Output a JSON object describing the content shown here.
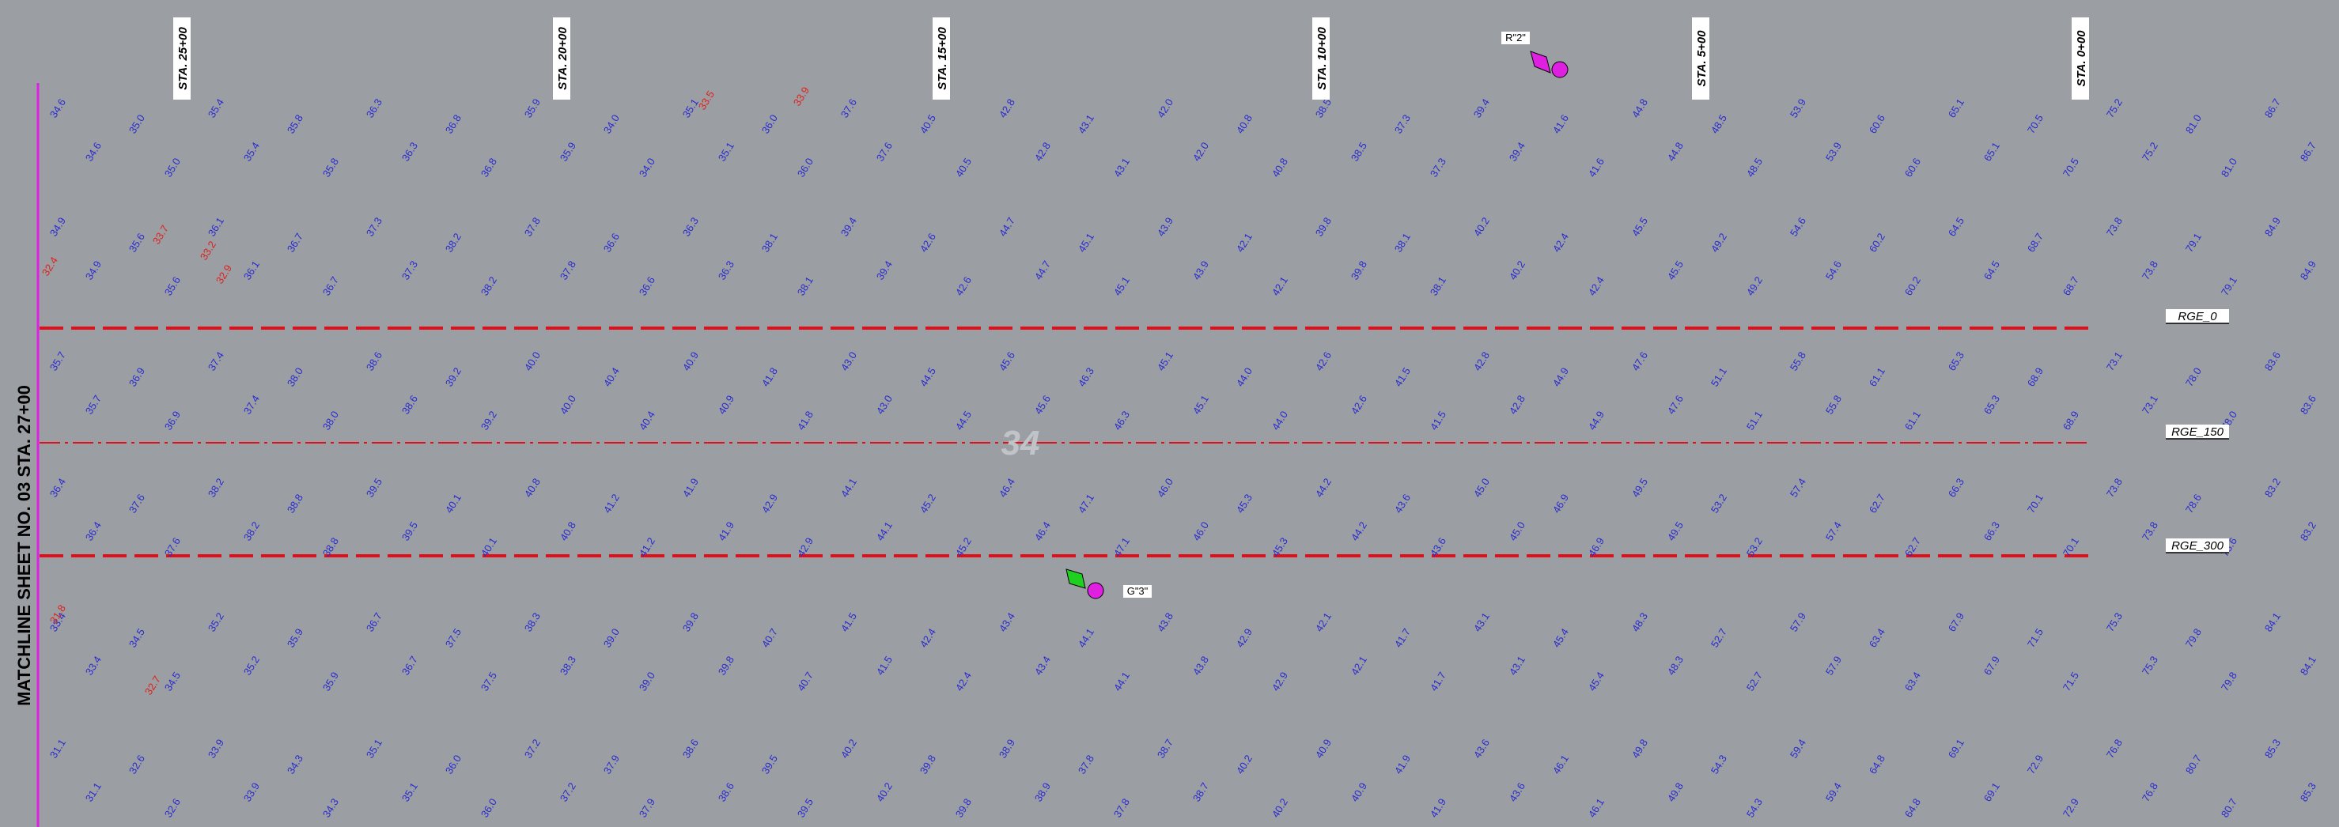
{
  "matchline": "MATCHLINE SHEET NO. 03 STA. 27+00",
  "stations": [
    "STA. 25+00",
    "STA. 20+00",
    "STA. 15+00",
    "STA. 10+00",
    "STA. 5+00",
    "STA. 0+00"
  ],
  "ranges": [
    "RGE_0",
    "RGE_150",
    "RGE_300"
  ],
  "markers": [
    "R\"2\"",
    "G\"3\""
  ],
  "sheet_number": "34",
  "elevation_rows": [
    [
      "34.6",
      "35.0",
      "35.4",
      "35.8",
      "36.3",
      "36.8",
      "35.9",
      "34.0",
      "35.1",
      "36.0",
      "37.6",
      "40.5",
      "42.8",
      "43.1",
      "42.0",
      "40.8",
      "38.5",
      "37.3",
      "39.4",
      "41.6",
      "44.8",
      "48.5",
      "53.9",
      "60.6",
      "65.1",
      "70.5",
      "75.2",
      "81.0",
      "86.7"
    ],
    [
      "34.9",
      "35.6",
      "36.1",
      "36.7",
      "37.3",
      "38.2",
      "37.8",
      "36.6",
      "36.3",
      "38.1",
      "39.4",
      "42.6",
      "44.7",
      "45.1",
      "43.9",
      "42.1",
      "39.8",
      "38.1",
      "40.2",
      "42.4",
      "45.5",
      "49.2",
      "54.6",
      "60.2",
      "64.5",
      "68.7",
      "73.8",
      "79.1",
      "84.9"
    ],
    [
      "35.7",
      "36.9",
      "37.4",
      "38.0",
      "38.6",
      "39.2",
      "40.0",
      "40.4",
      "40.9",
      "41.8",
      "43.0",
      "44.5",
      "45.6",
      "46.3",
      "45.1",
      "44.0",
      "42.6",
      "41.5",
      "42.8",
      "44.9",
      "47.6",
      "51.1",
      "55.8",
      "61.1",
      "65.3",
      "68.9",
      "73.1",
      "78.0",
      "83.6"
    ],
    [
      "36.4",
      "37.6",
      "38.2",
      "38.8",
      "39.5",
      "40.1",
      "40.8",
      "41.2",
      "41.9",
      "42.9",
      "44.1",
      "45.2",
      "46.4",
      "47.1",
      "46.0",
      "45.3",
      "44.2",
      "43.6",
      "45.0",
      "46.9",
      "49.5",
      "53.2",
      "57.4",
      "62.7",
      "66.3",
      "70.1",
      "73.8",
      "78.6",
      "83.2"
    ],
    [
      "33.4",
      "34.5",
      "35.2",
      "35.9",
      "36.7",
      "37.5",
      "38.3",
      "39.0",
      "39.8",
      "40.7",
      "41.5",
      "42.4",
      "43.4",
      "44.1",
      "43.8",
      "42.9",
      "42.1",
      "41.7",
      "43.1",
      "45.4",
      "48.3",
      "52.7",
      "57.9",
      "63.4",
      "67.9",
      "71.5",
      "75.3",
      "79.8",
      "84.1"
    ],
    [
      "31.1",
      "32.6",
      "33.9",
      "34.3",
      "35.1",
      "36.0",
      "37.2",
      "37.9",
      "38.6",
      "39.5",
      "40.2",
      "39.8",
      "38.9",
      "37.8",
      "38.7",
      "40.2",
      "40.9",
      "41.9",
      "43.6",
      "46.1",
      "49.8",
      "54.3",
      "59.4",
      "64.8",
      "69.1",
      "72.9",
      "76.8",
      "80.7",
      "85.3"
    ]
  ],
  "low_elevations": [
    "32.4",
    "33.7",
    "33.2",
    "32.9",
    "33.5",
    "33.9",
    "31.8",
    "32.7"
  ]
}
